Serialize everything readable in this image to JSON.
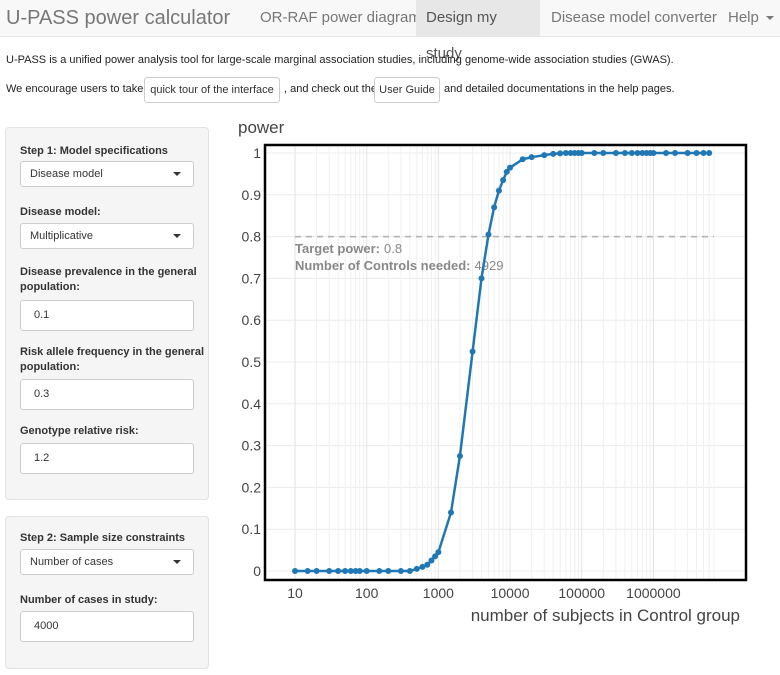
{
  "navbar": {
    "brand": "U-PASS power calculator",
    "tabs": [
      {
        "label": "OR-RAF power diagram"
      },
      {
        "label": "Design my study"
      },
      {
        "label": "Disease model converter"
      },
      {
        "label": "Help"
      }
    ]
  },
  "intro": {
    "line1": "U-PASS is a unified power analysis tool for large-scale marginal association studies, including genome-wide association studies (GWAS).",
    "line2_prefix": "We encourage users to take a",
    "tour_button": "quick tour of the interface",
    "line2_middle": ", and check out the",
    "guide_button": "User Guide",
    "line2_suffix": "and detailed documentations in the help pages."
  },
  "step1": {
    "title": "Step 1: Model specifications",
    "spec_select": "Disease model",
    "disease_model_label": "Disease model:",
    "disease_model_value": "Multiplicative",
    "prevalence_label_1": "Disease prevalence in the general",
    "prevalence_label_2": "population:",
    "prevalence_value": "0.1",
    "raf_label_1": "Risk allele frequency in the general",
    "raf_label_2": "population:",
    "raf_value": "0.3",
    "grr_label": "Genotype relative risk:",
    "grr_value": "1.2"
  },
  "step2": {
    "title": "Step 2: Sample size constraints",
    "constraint_select": "Number of cases",
    "cases_label": "Number of cases in study:",
    "cases_value": "4000"
  },
  "chart_data": {
    "type": "line",
    "ylabel": "power",
    "xlabel": "number of subjects in Control group",
    "x_scale": "log",
    "xlim": [
      10,
      7000000
    ],
    "ylim": [
      0,
      1
    ],
    "x_ticks": [
      10,
      100,
      1000,
      10000,
      100000,
      1000000
    ],
    "x_tick_labels": [
      "10",
      "100",
      "1000",
      "10000",
      "100000",
      "1000000"
    ],
    "y_ticks": [
      0,
      0.1,
      0.2,
      0.3,
      0.4,
      0.5,
      0.6,
      0.7,
      0.8,
      0.9,
      1
    ],
    "y_tick_labels": [
      "0",
      "0.1",
      "0.2",
      "0.3",
      "0.4",
      "0.5",
      "0.6",
      "0.7",
      "0.8",
      "0.9",
      "1"
    ],
    "grid": true,
    "color": "#1f77b4",
    "target_line": 0.8,
    "annotations": {
      "target_label": "Target power:",
      "target_value": "0.8",
      "controls_label": "Number of Controls needed:",
      "controls_value": "4929"
    },
    "series": [
      {
        "x": [
          10,
          15,
          20,
          30,
          40,
          50,
          60,
          70,
          80,
          100,
          150,
          200,
          300,
          400,
          500,
          600,
          700,
          800,
          900,
          1000,
          1500,
          2000,
          3000,
          4000,
          5000,
          6000,
          7000,
          8000,
          9000,
          10000,
          15000,
          20000,
          30000,
          40000,
          50000,
          60000,
          70000,
          80000,
          90000,
          100000,
          150000,
          200000,
          300000,
          400000,
          500000,
          600000,
          700000,
          800000,
          900000,
          1000000,
          1500000,
          2000000,
          3000000,
          4000000,
          5000000,
          6000000
        ],
        "y": [
          0,
          0,
          0,
          0,
          0,
          0,
          0,
          0,
          0,
          0,
          0,
          0,
          0,
          0,
          0.005,
          0.01,
          0.015,
          0.025,
          0.035,
          0.045,
          0.14,
          0.275,
          0.525,
          0.7,
          0.805,
          0.87,
          0.91,
          0.935,
          0.955,
          0.965,
          0.985,
          0.99,
          0.995,
          0.998,
          0.999,
          1,
          1,
          1,
          1,
          1,
          1,
          1,
          1,
          1,
          1,
          1,
          1,
          1,
          1,
          1,
          1,
          1,
          1,
          1,
          1,
          1
        ]
      }
    ]
  }
}
